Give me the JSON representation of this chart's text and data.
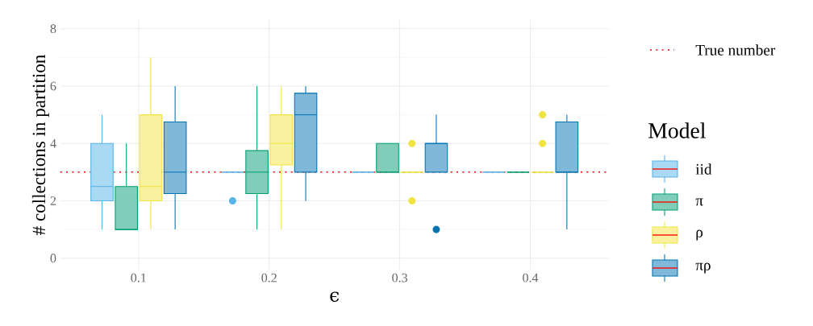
{
  "chart_data": {
    "type": "box",
    "xlabel": "ϵ",
    "ylabel": "# collections in partition",
    "legend_title": "Model",
    "legend": "right",
    "grid": true,
    "categories": [
      "0.1",
      "0.2",
      "0.3",
      "0.4"
    ],
    "ylim": [
      -0.4,
      8.3
    ],
    "yticks": [
      0,
      2,
      4,
      6,
      8
    ],
    "ref_lines": [
      {
        "axis": "y",
        "value": 3,
        "label": "True number",
        "color": "#ff0000",
        "line_style": "dotted"
      }
    ],
    "series": [
      {
        "name": "iid",
        "color": "#56b4e9",
        "boxes": [
          {
            "low": 1,
            "q1": 2,
            "median": 2.5,
            "q3": 4,
            "high": 5
          },
          {
            "low": 3,
            "q1": 3,
            "median": 3,
            "q3": 3,
            "high": 3,
            "outliers": [
              2
            ]
          },
          {
            "low": 3,
            "q1": 3,
            "median": 3,
            "q3": 3,
            "high": 3
          },
          {
            "low": 3,
            "q1": 3,
            "median": 3,
            "q3": 3,
            "high": 3
          }
        ]
      },
      {
        "name": "π",
        "color": "#009e73",
        "boxes": [
          {
            "low": 1,
            "q1": 1,
            "median": 1,
            "q3": 2.5,
            "high": 4
          },
          {
            "low": 1,
            "q1": 2.25,
            "median": 3,
            "q3": 3.75,
            "high": 6
          },
          {
            "low": 3,
            "q1": 3,
            "median": 3,
            "q3": 4,
            "high": 4
          },
          {
            "low": 3,
            "q1": 3,
            "median": 3,
            "q3": 3,
            "high": 3
          }
        ]
      },
      {
        "name": "ρ",
        "color": "#f0e442",
        "boxes": [
          {
            "low": 1,
            "q1": 2,
            "median": 2.5,
            "q3": 5,
            "high": 7
          },
          {
            "low": 1,
            "q1": 3.25,
            "median": 4,
            "q3": 5,
            "high": 6
          },
          {
            "low": 3,
            "q1": 3,
            "median": 3,
            "q3": 3,
            "high": 3,
            "outliers": [
              2,
              4
            ]
          },
          {
            "low": 3,
            "q1": 3,
            "median": 3,
            "q3": 3,
            "high": 3,
            "outliers": [
              4,
              5
            ]
          }
        ]
      },
      {
        "name": "πρ",
        "color": "#0072b2",
        "boxes": [
          {
            "low": 1,
            "q1": 2.25,
            "median": 3,
            "q3": 4.75,
            "high": 6
          },
          {
            "low": 2,
            "q1": 3,
            "median": 5,
            "q3": 5.75,
            "high": 6
          },
          {
            "low": 3,
            "q1": 3,
            "median": 4,
            "q3": 4,
            "high": 5,
            "outliers": [
              1
            ]
          },
          {
            "low": 1,
            "q1": 3,
            "median": 3,
            "q3": 4.75,
            "high": 5
          }
        ]
      }
    ]
  }
}
